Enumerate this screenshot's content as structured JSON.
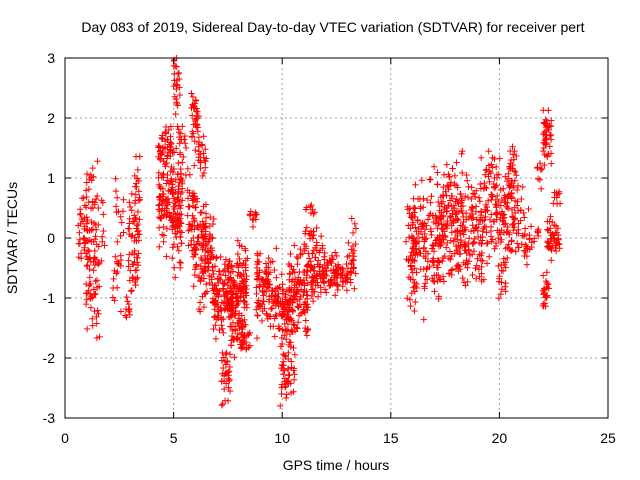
{
  "chart_data": {
    "type": "scatter",
    "title": "Day 083 of 2019, Sidereal Day-to-day VTEC variation (SDTVAR) for receiver pert",
    "xlabel": "GPS time / hours",
    "ylabel": "SDTVAR / TECUs",
    "xlim": [
      0,
      25
    ],
    "ylim": [
      -3,
      3
    ],
    "xticks": [
      0,
      5,
      10,
      15,
      20,
      25
    ],
    "yticks": [
      -3,
      -2,
      -1,
      0,
      1,
      2,
      3
    ],
    "grid": true,
    "marker": "+",
    "series_color": "#ff0000",
    "clusters": [
      {
        "x0": 0.6,
        "x1": 1.0,
        "y": 0.1,
        "s": 0.35,
        "n": 30
      },
      {
        "x0": 0.95,
        "x1": 1.6,
        "y": -0.6,
        "s": 0.55,
        "n": 70
      },
      {
        "x0": 1.0,
        "x1": 1.5,
        "y": 0.4,
        "s": 0.35,
        "n": 25
      },
      {
        "x0": 1.6,
        "x1": 1.9,
        "y": 0.2,
        "s": 0.25,
        "n": 8
      },
      {
        "x0": 2.2,
        "x1": 2.6,
        "y": -0.6,
        "s": 0.25,
        "n": 18
      },
      {
        "x0": 2.3,
        "x1": 2.7,
        "y": 0.6,
        "s": 0.25,
        "n": 12
      },
      {
        "x0": 2.7,
        "x1": 3.0,
        "y": -1.2,
        "s": 0.2,
        "n": 10
      },
      {
        "x0": 2.9,
        "x1": 3.4,
        "y": -0.2,
        "s": 0.5,
        "n": 50
      },
      {
        "x0": 3.2,
        "x1": 3.5,
        "y": 0.6,
        "s": 0.35,
        "n": 25
      },
      {
        "x0": 4.3,
        "x1": 4.9,
        "y": 1.6,
        "s": 0.15,
        "n": 40
      },
      {
        "x0": 4.3,
        "x1": 4.9,
        "y": 0.7,
        "s": 0.4,
        "n": 80
      },
      {
        "x0": 4.9,
        "x1": 5.4,
        "y": 0.5,
        "s": 0.45,
        "n": 90
      },
      {
        "x0": 5.0,
        "x1": 5.3,
        "y": 2.6,
        "s": 0.25,
        "n": 25
      },
      {
        "x0": 5.2,
        "x1": 5.6,
        "y": 1.5,
        "s": 0.25,
        "n": 20
      },
      {
        "x0": 5.6,
        "x1": 6.0,
        "y": 0.4,
        "s": 0.4,
        "n": 35
      },
      {
        "x0": 5.8,
        "x1": 6.2,
        "y": 1.9,
        "s": 0.25,
        "n": 35
      },
      {
        "x0": 5.9,
        "x1": 6.5,
        "y": -0.1,
        "s": 0.45,
        "n": 80
      },
      {
        "x0": 6.1,
        "x1": 6.5,
        "y": 1.4,
        "s": 0.15,
        "n": 20
      },
      {
        "x0": 6.4,
        "x1": 6.9,
        "y": -0.3,
        "s": 0.35,
        "n": 50
      },
      {
        "x0": 6.8,
        "x1": 7.5,
        "y": -1.0,
        "s": 0.3,
        "n": 90
      },
      {
        "x0": 7.2,
        "x1": 7.6,
        "y": -2.3,
        "s": 0.3,
        "n": 35
      },
      {
        "x0": 7.5,
        "x1": 8.4,
        "y": -0.8,
        "s": 0.3,
        "n": 130
      },
      {
        "x0": 7.6,
        "x1": 8.2,
        "y": -1.5,
        "s": 0.25,
        "n": 40
      },
      {
        "x0": 8.0,
        "x1": 8.6,
        "y": -1.7,
        "s": 0.12,
        "n": 20
      },
      {
        "x0": 8.5,
        "x1": 8.9,
        "y": 0.35,
        "s": 0.08,
        "n": 12
      },
      {
        "x0": 8.8,
        "x1": 9.8,
        "y": -0.9,
        "s": 0.3,
        "n": 110
      },
      {
        "x0": 9.8,
        "x1": 10.5,
        "y": -1.2,
        "s": 0.3,
        "n": 80
      },
      {
        "x0": 9.9,
        "x1": 10.6,
        "y": -2.3,
        "s": 0.28,
        "n": 45
      },
      {
        "x0": 10.3,
        "x1": 11.2,
        "y": -0.9,
        "s": 0.35,
        "n": 110
      },
      {
        "x0": 11.0,
        "x1": 11.6,
        "y": 0.1,
        "s": 0.35,
        "n": 35
      },
      {
        "x0": 11.3,
        "x1": 12.0,
        "y": -0.5,
        "s": 0.25,
        "n": 70
      },
      {
        "x0": 12.0,
        "x1": 13.0,
        "y": -0.6,
        "s": 0.15,
        "n": 70
      },
      {
        "x0": 13.0,
        "x1": 13.4,
        "y": -0.4,
        "s": 0.4,
        "n": 30
      },
      {
        "x0": 15.7,
        "x1": 16.2,
        "y": -0.4,
        "s": 0.45,
        "n": 55
      },
      {
        "x0": 16.0,
        "x1": 16.5,
        "y": 0.2,
        "s": 0.3,
        "n": 45
      },
      {
        "x0": 16.5,
        "x1": 17.4,
        "y": 0.0,
        "s": 0.5,
        "n": 110
      },
      {
        "x0": 17.4,
        "x1": 18.3,
        "y": 0.3,
        "s": 0.5,
        "n": 130
      },
      {
        "x0": 18.3,
        "x1": 19.3,
        "y": 0.1,
        "s": 0.45,
        "n": 110
      },
      {
        "x0": 19.3,
        "x1": 20.1,
        "y": 0.6,
        "s": 0.45,
        "n": 80
      },
      {
        "x0": 19.9,
        "x1": 20.3,
        "y": -0.6,
        "s": 0.15,
        "n": 18
      },
      {
        "x0": 20.1,
        "x1": 20.9,
        "y": 0.3,
        "s": 0.35,
        "n": 80
      },
      {
        "x0": 20.4,
        "x1": 20.8,
        "y": 1.2,
        "s": 0.2,
        "n": 25
      },
      {
        "x0": 20.9,
        "x1": 21.4,
        "y": 0.1,
        "s": 0.3,
        "n": 25
      },
      {
        "x0": 21.4,
        "x1": 21.8,
        "y": 0.1,
        "s": 0.15,
        "n": 10
      },
      {
        "x0": 21.7,
        "x1": 22.0,
        "y": 1.0,
        "s": 0.2,
        "n": 8
      },
      {
        "x0": 22.0,
        "x1": 22.4,
        "y": 1.7,
        "s": 0.3,
        "n": 45
      },
      {
        "x0": 22.0,
        "x1": 22.3,
        "y": -0.9,
        "s": 0.15,
        "n": 25
      },
      {
        "x0": 22.2,
        "x1": 22.8,
        "y": 0.0,
        "s": 0.15,
        "n": 45
      },
      {
        "x0": 22.4,
        "x1": 22.8,
        "y": 0.7,
        "s": 0.08,
        "n": 10
      }
    ]
  }
}
